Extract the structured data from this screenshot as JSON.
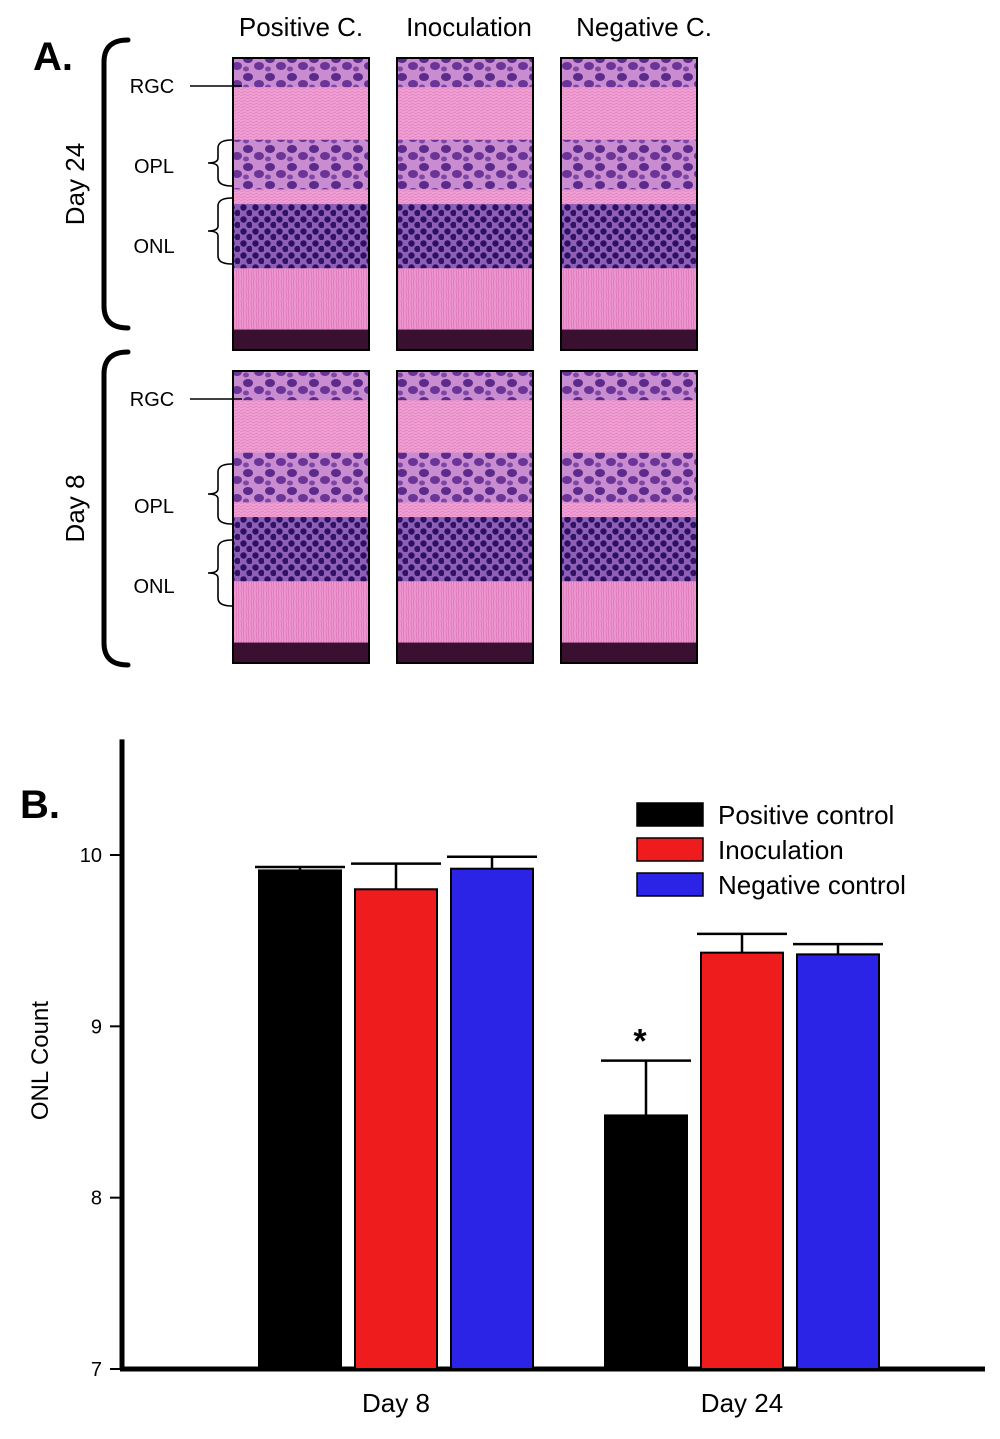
{
  "panel_a": {
    "label": "A.",
    "columns": [
      "Positive C.",
      "Inoculation",
      "Negative C."
    ],
    "rows": [
      {
        "day": "Day 24",
        "layers": [
          "RGC",
          "OPL",
          "ONL"
        ]
      },
      {
        "day": "Day 8",
        "layers": [
          "RGC",
          "OPL",
          "ONL"
        ]
      }
    ]
  },
  "panel_b": {
    "label": "B."
  },
  "chart_data": {
    "type": "bar",
    "categories": [
      "Day 8",
      "Day 24"
    ],
    "ylabel": "ONL Count",
    "xlabel": "",
    "ylim": [
      7,
      10.5
    ],
    "yticks": [
      7,
      8,
      9,
      10
    ],
    "grid": false,
    "legend_position": "top-right",
    "series": [
      {
        "name": "Positive control",
        "color": "#000000",
        "values": [
          9.91,
          8.48
        ],
        "errors": [
          0.02,
          0.32
        ]
      },
      {
        "name": "Inoculation",
        "color": "#ee1c1c",
        "values": [
          9.8,
          9.43
        ],
        "errors": [
          0.15,
          0.11
        ]
      },
      {
        "name": "Negative control",
        "color": "#2b23e6",
        "values": [
          9.92,
          9.42
        ],
        "errors": [
          0.07,
          0.06
        ]
      }
    ],
    "annotations": [
      {
        "text": "*",
        "series": 0,
        "category": 1
      }
    ]
  }
}
